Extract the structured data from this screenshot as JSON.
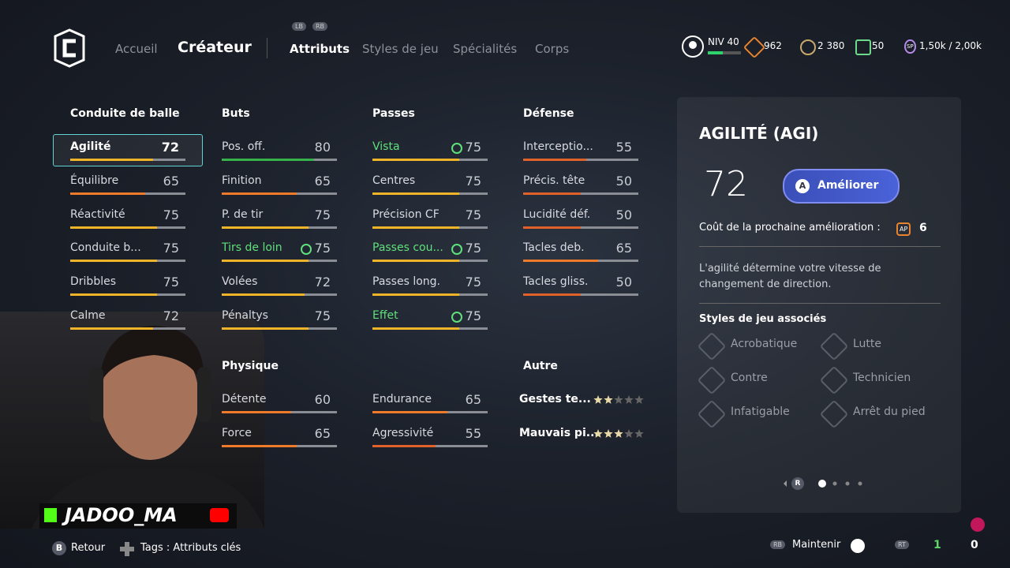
{
  "nav": {
    "shoulders": [
      "LB",
      "RB"
    ],
    "tabs": [
      "Accueil",
      "Créateur",
      "Attributs",
      "Styles de jeu",
      "Spécialités",
      "Corps"
    ]
  },
  "status": {
    "level": "NIV 40",
    "ap": "962",
    "coins": "2 380",
    "points": "50",
    "sp_icon": "SP",
    "sp": "1,50k / 2,00k"
  },
  "sections": [
    {
      "title": "Conduite de balle",
      "col": 0,
      "block": 0,
      "items": [
        {
          "name": "Agilité",
          "value": 72,
          "selected": true
        },
        {
          "name": "Équilibre",
          "value": 65
        },
        {
          "name": "Réactivité",
          "value": 75
        },
        {
          "name": "Conduite b...",
          "value": 75
        },
        {
          "name": "Dribbles",
          "value": 75
        },
        {
          "name": "Calme",
          "value": 72
        }
      ]
    },
    {
      "title": "Buts",
      "col": 1,
      "block": 0,
      "items": [
        {
          "name": "Pos. off.",
          "value": 80
        },
        {
          "name": "Finition",
          "value": 65
        },
        {
          "name": "P. de tir",
          "value": 75
        },
        {
          "name": "Tirs de loin",
          "value": 75,
          "highlight": true
        },
        {
          "name": "Volées",
          "value": 72
        },
        {
          "name": "Pénaltys",
          "value": 75
        }
      ]
    },
    {
      "title": "Passes",
      "col": 2,
      "block": 0,
      "items": [
        {
          "name": "Vista",
          "value": 75,
          "highlight": true
        },
        {
          "name": "Centres",
          "value": 75
        },
        {
          "name": "Précision CF",
          "value": 75
        },
        {
          "name": "Passes cou...",
          "value": 75,
          "highlight": true
        },
        {
          "name": "Passes long.",
          "value": 75
        },
        {
          "name": "Effet",
          "value": 75,
          "highlight": true
        }
      ]
    },
    {
      "title": "Défense",
      "col": 3,
      "block": 0,
      "items": [
        {
          "name": "Interceptio...",
          "value": 55
        },
        {
          "name": "Précis. tête",
          "value": 50
        },
        {
          "name": "Lucidité déf.",
          "value": 50
        },
        {
          "name": "Tacles deb.",
          "value": 65
        },
        {
          "name": "Tacles gliss.",
          "value": 50
        }
      ]
    },
    {
      "title": "Physique",
      "col": 1,
      "block": 1,
      "items": [
        {
          "name": "Détente",
          "value": 60
        },
        {
          "name": "Force",
          "value": 65
        }
      ]
    },
    {
      "col": 2,
      "block": 1,
      "items": [
        {
          "name": "Endurance",
          "value": 65
        },
        {
          "name": "Agressivité",
          "value": 55
        }
      ]
    },
    {
      "title": "Autre",
      "col": 3,
      "block": 1,
      "stars": true,
      "items": [
        {
          "name": "Gestes te...",
          "value": 2
        },
        {
          "name": "Mauvais pi...",
          "value": 3
        }
      ]
    }
  ],
  "detail": {
    "title": "AGILITÉ (AGI)",
    "value": "72",
    "button_key": "A",
    "button": "Améliorer",
    "cost_label": "Coût de la prochaine amélioration :",
    "cost_icon": "AP",
    "cost": "6",
    "description": "L'agilité détermine votre vitesse de changement de direction.",
    "styles_title": "Styles de jeu associés",
    "styles": [
      "Acrobatique",
      "Lutte",
      "Contre",
      "Technicien",
      "Infatigable",
      "Arrêt du pied"
    ],
    "pager_key": "R"
  },
  "footer": {
    "back_key": "B",
    "back": "Retour",
    "tags": "Tags : Attributs clés",
    "hold_key": "RB",
    "hold": "Maintenir",
    "rt": "RT",
    "count1": "1",
    "count2": "0"
  },
  "webcam": {
    "name": "JADOO_MA"
  }
}
